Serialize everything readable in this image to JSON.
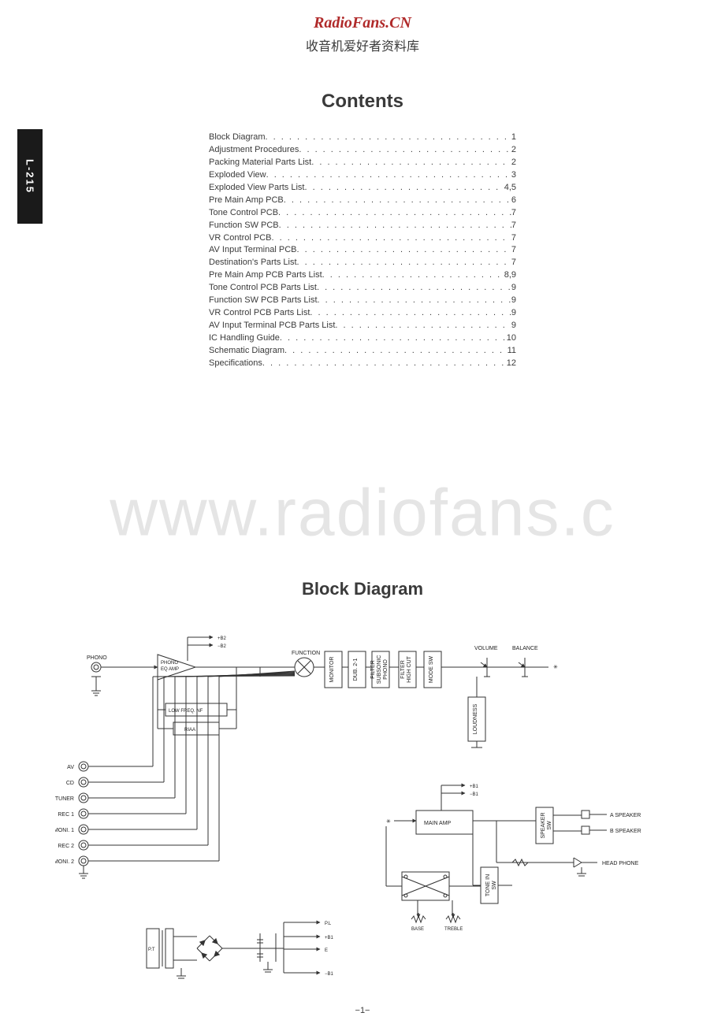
{
  "header": {
    "site_title": "RadioFans.CN",
    "site_title_color": "#b02a2a",
    "site_subtitle": "收音机爱好者资料库",
    "side_tab_label": "L-215"
  },
  "watermark": "www.radiofans.c",
  "contents": {
    "title": "Contents",
    "items": [
      {
        "label": "Block Diagram",
        "page": "1"
      },
      {
        "label": "Adjustment Procedures",
        "page": "2"
      },
      {
        "label": "Packing Material Parts List",
        "page": "2"
      },
      {
        "label": "Exploded View",
        "page": "3"
      },
      {
        "label": "Exploded View Parts List",
        "page": "4,5"
      },
      {
        "label": "Pre Main Amp PCB",
        "page": "6"
      },
      {
        "label": "Tone Control PCB",
        "page": "7"
      },
      {
        "label": "Function SW PCB",
        "page": "7"
      },
      {
        "label": "VR Control PCB",
        "page": "7"
      },
      {
        "label": "AV Input Terminal PCB",
        "page": "7"
      },
      {
        "label": "Destination's Parts List",
        "page": "7"
      },
      {
        "label": "Pre Main Amp PCB Parts List",
        "page": "8,9"
      },
      {
        "label": "Tone Control PCB Parts List",
        "page": "9"
      },
      {
        "label": "Function SW PCB Parts List",
        "page": "9"
      },
      {
        "label": "VR Control PCB Parts List",
        "page": "9"
      },
      {
        "label": "AV Input Terminal PCB Parts List",
        "page": "9"
      },
      {
        "label": "IC Handling Guide",
        "page": "10"
      },
      {
        "label": "Schematic Diagram",
        "page": "11"
      },
      {
        "label": "Specifications",
        "page": "12"
      }
    ]
  },
  "block_diagram": {
    "title": "Block Diagram",
    "stroke": "#333333",
    "stroke_width": 1,
    "rails": {
      "top_plus": "+B2",
      "top_minus": "−B2",
      "mid_plus": "+B1",
      "mid_minus": "−B1"
    },
    "inputs": [
      "PHONO",
      "AV",
      "CD",
      "TUNER",
      "REC 1",
      "MONI. 1",
      "REC 2",
      "MONI. 2"
    ],
    "blocks": {
      "phono_eq": "PHONO\nEQ AMP",
      "low_freq": "LOW FREQ. NF",
      "riaa": "RIAA",
      "function": "FUNCTION",
      "monitor": "MONITOR",
      "dub": "DUB. 2-1",
      "subsonic": "PHONO\nSUBSONIC\nFILTER",
      "highcut": "HIGH CUT\nFILTER",
      "modesw": "MODE SW",
      "loudness": "LOUDNESS",
      "volume": "VOLUME",
      "balance": "BALANCE",
      "main_amp": "MAIN AMP",
      "speaker_sw": "SPEAKER\nSW",
      "tone_in_sw": "TONE IN\nSW",
      "base": "BASE",
      "treble": "TREBLE"
    },
    "outputs": {
      "a_speaker": "A SPEAKER",
      "b_speaker": "B SPEAKER",
      "headphone": "HEAD PHONE"
    },
    "ps_outputs": [
      "P.L",
      "+B1",
      "E",
      "−B1"
    ],
    "pt_label": "P.T"
  },
  "page_number": "−1−"
}
